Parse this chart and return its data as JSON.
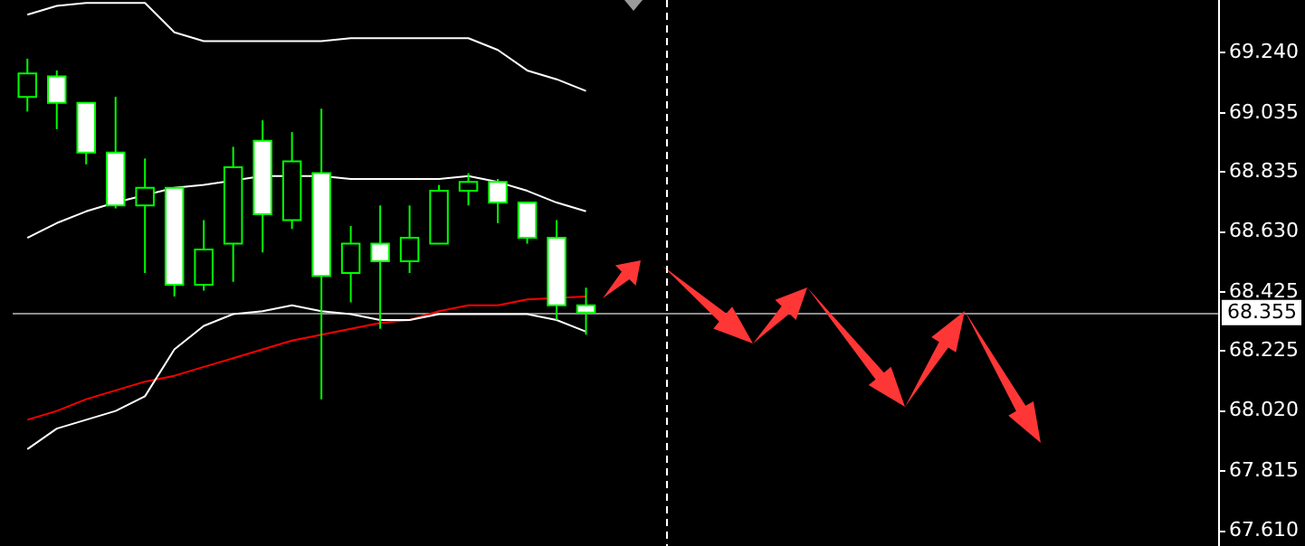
{
  "chart_data": {
    "type": "candlestick",
    "color": "#00ff00",
    "tick_labels": "y",
    "colors": [
      "#000000",
      "#ffffff",
      "#ffffff",
      "#ffffff",
      "#000000",
      "#ffffff",
      "#000000",
      "#000000",
      "#ffffff",
      "#000000",
      "#ffffff",
      "#000000",
      "#ffffff",
      "#000000",
      "#000000",
      "#000000",
      "#ffffff",
      "#ffffff",
      "#ffffff",
      "#ffffff",
      null,
      null,
      null,
      null,
      null,
      null,
      null,
      null,
      null,
      null,
      null,
      null,
      null,
      null,
      null,
      null,
      null,
      null,
      null,
      null,
      null
    ],
    "categories": [
      null,
      null,
      null,
      null,
      null,
      null,
      null,
      null,
      null,
      null,
      null,
      null,
      null,
      null,
      null,
      null,
      null,
      null,
      null,
      null,
      null,
      null,
      null,
      null,
      null,
      null,
      null,
      null,
      null,
      null,
      null,
      null,
      null,
      null,
      null,
      null,
      null,
      null,
      null,
      null,
      null
    ],
    "ohlc": [
      [
        69.09,
        69.22,
        69.04,
        69.17
      ],
      [
        69.16,
        69.18,
        68.98,
        69.07
      ],
      [
        69.07,
        69.07,
        68.86,
        68.9
      ],
      [
        68.9,
        69.09,
        68.71,
        68.72
      ],
      [
        68.72,
        68.88,
        68.49,
        68.78
      ],
      [
        68.78,
        68.78,
        68.41,
        68.45
      ],
      [
        68.45,
        68.67,
        68.43,
        68.57
      ],
      [
        68.59,
        68.92,
        68.46,
        68.85
      ],
      [
        68.94,
        69.01,
        68.56,
        68.69
      ],
      [
        68.67,
        68.97,
        68.64,
        68.87
      ],
      [
        68.83,
        69.05,
        68.06,
        68.48
      ],
      [
        68.49,
        68.65,
        68.39,
        68.59
      ],
      [
        68.59,
        68.72,
        68.3,
        68.53
      ],
      [
        68.53,
        68.72,
        68.49,
        68.61
      ],
      [
        68.59,
        68.79,
        68.59,
        68.77
      ],
      [
        68.77,
        68.83,
        68.72,
        68.8
      ],
      [
        68.8,
        68.81,
        68.66,
        68.73
      ],
      [
        68.73,
        68.73,
        68.59,
        68.61
      ],
      [
        68.61,
        68.67,
        68.33,
        68.38
      ],
      [
        68.38,
        68.44,
        68.28,
        68.355
      ],
      null,
      null,
      null,
      null,
      null,
      null,
      null,
      null,
      null,
      null,
      null,
      null,
      null,
      null,
      null,
      null,
      null,
      null,
      null,
      null,
      null
    ],
    "series": [
      {
        "type": "line",
        "color": "#ffffff",
        "values": [
          69.37,
          69.4,
          69.41,
          69.41,
          69.41,
          69.31,
          69.28,
          69.28,
          69.28,
          69.28,
          69.28,
          69.29,
          69.29,
          69.29,
          69.29,
          69.29,
          69.25,
          69.18,
          69.15,
          69.11,
          null,
          null,
          null,
          null,
          null,
          null,
          null,
          null,
          null,
          null,
          null,
          null,
          null,
          null,
          null,
          null,
          null,
          null,
          null,
          null,
          null
        ]
      },
      {
        "type": "line",
        "color": "#ffffff",
        "values": [
          68.61,
          68.66,
          68.7,
          68.73,
          null,
          68.78,
          68.79,
          null,
          68.82,
          null,
          68.82,
          68.81,
          68.81,
          68.81,
          68.81,
          68.82,
          68.8,
          68.77,
          68.73,
          68.7,
          null,
          null,
          null,
          null,
          null,
          null,
          null,
          null,
          null,
          null,
          null,
          null,
          null,
          null,
          null,
          null,
          null,
          null,
          null,
          null,
          null
        ]
      },
      {
        "type": "line",
        "color": "#ffffff",
        "values": [
          67.89,
          67.96,
          67.99,
          68.02,
          68.07,
          68.23,
          68.31,
          68.35,
          68.36,
          68.38,
          68.36,
          68.35,
          68.33,
          68.33,
          68.35,
          68.35,
          68.35,
          68.35,
          68.33,
          68.29,
          null,
          null,
          null,
          null,
          null,
          null,
          null,
          null,
          null,
          null,
          null,
          null,
          null,
          null,
          null,
          null,
          null,
          null,
          null,
          null,
          null
        ]
      },
      {
        "type": "line",
        "color": "#ff0000",
        "values": [
          67.99,
          68.02,
          68.06,
          68.09,
          68.12,
          68.14,
          68.17,
          68.2,
          68.23,
          68.26,
          68.28,
          68.3,
          68.32,
          68.33,
          68.36,
          68.38,
          68.38,
          68.4,
          null,
          68.41,
          null,
          null,
          null,
          null,
          null,
          null,
          null,
          null,
          null,
          null,
          null,
          null,
          null,
          null,
          null,
          null,
          null,
          null,
          null,
          null,
          null
        ]
      }
    ],
    "ylim": [
      67.56,
      69.42
    ],
    "yticks": [
      {
        "value": 69.24,
        "label": "69.240"
      },
      69.035,
      68.835,
      {
        "value": 68.63,
        "label": "68.630"
      },
      68.425,
      68.225,
      {
        "value": 68.02,
        "label": "68.020"
      },
      67.815,
      {
        "value": 67.61,
        "label": "67.610"
      }
    ],
    "ref_lines": [
      {
        "axis": "y",
        "value": 68.355,
        "label": "68.355",
        "color": "#8c8c8c"
      }
    ]
  }
}
